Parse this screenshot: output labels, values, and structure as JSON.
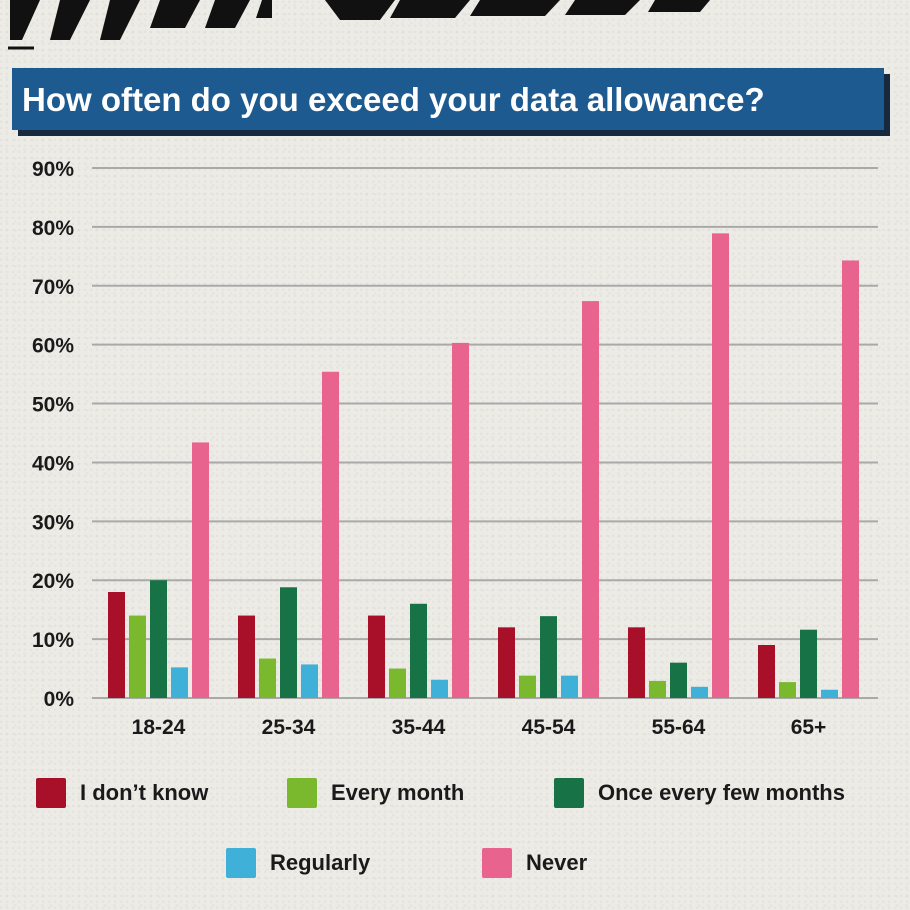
{
  "chart_data": {
    "type": "bar",
    "title": "How often do you exceed your data allowance?",
    "xlabel": "",
    "ylabel": "",
    "ylim": [
      0,
      90
    ],
    "yticks": [
      0,
      10,
      20,
      30,
      40,
      50,
      60,
      70,
      80,
      90
    ],
    "ytick_labels": [
      "0%",
      "10%",
      "20%",
      "30%",
      "40%",
      "50%",
      "60%",
      "70%",
      "80%",
      "90%"
    ],
    "categories": [
      "18-24",
      "25-34",
      "35-44",
      "45-54",
      "55-64",
      "65+"
    ],
    "series": [
      {
        "name": "I don’t know",
        "color": "#a8102a",
        "values": [
          18,
          14,
          14,
          12,
          12,
          9
        ]
      },
      {
        "name": "Every month",
        "color": "#7ab82e",
        "values": [
          14,
          6.7,
          5,
          3.8,
          2.9,
          2.7
        ]
      },
      {
        "name": "Once every few months",
        "color": "#177345",
        "values": [
          20,
          18.8,
          16,
          13.9,
          6,
          11.6
        ]
      },
      {
        "name": "Regularly",
        "color": "#3fb1d9",
        "values": [
          5.2,
          5.7,
          3.1,
          3.8,
          1.9,
          1.4
        ]
      },
      {
        "name": "Never",
        "color": "#e9638f",
        "values": [
          43.4,
          55.4,
          60.3,
          67.4,
          78.9,
          74.3
        ]
      }
    ],
    "grid": true,
    "legend_position": "bottom"
  }
}
